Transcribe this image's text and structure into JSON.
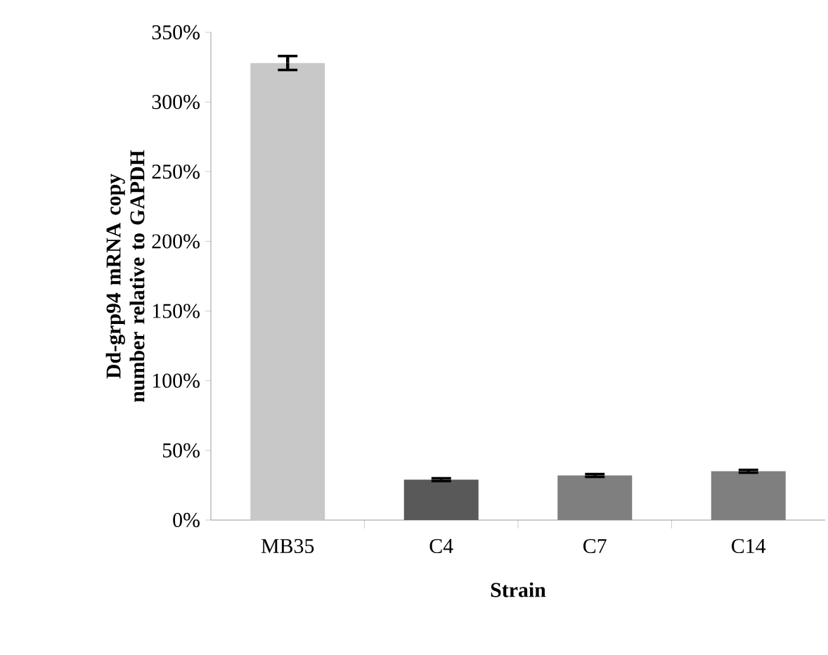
{
  "chart_data": {
    "type": "bar",
    "xlabel": "Strain",
    "ylabel": "Dd-grp94 mRNA copy number relative to GAPDH",
    "categories": [
      "MB35",
      "C4",
      "C7",
      "C14"
    ],
    "values": [
      328,
      29,
      32,
      35
    ],
    "errors": [
      5,
      1,
      1,
      1
    ],
    "colors": [
      "#c8c8c8",
      "#595959",
      "#7f7f7f",
      "#7f7f7f"
    ],
    "ylim": [
      0,
      350
    ],
    "yticks": [
      {
        "value": 0,
        "label": "0%"
      },
      {
        "value": 50,
        "label": "50%"
      },
      {
        "value": 100,
        "label": "100%"
      },
      {
        "value": 150,
        "label": "150%"
      },
      {
        "value": 200,
        "label": "200%"
      },
      {
        "value": 250,
        "label": "250%"
      },
      {
        "value": 300,
        "label": "300%"
      },
      {
        "value": 350,
        "label": "350%"
      }
    ],
    "grid": false
  }
}
